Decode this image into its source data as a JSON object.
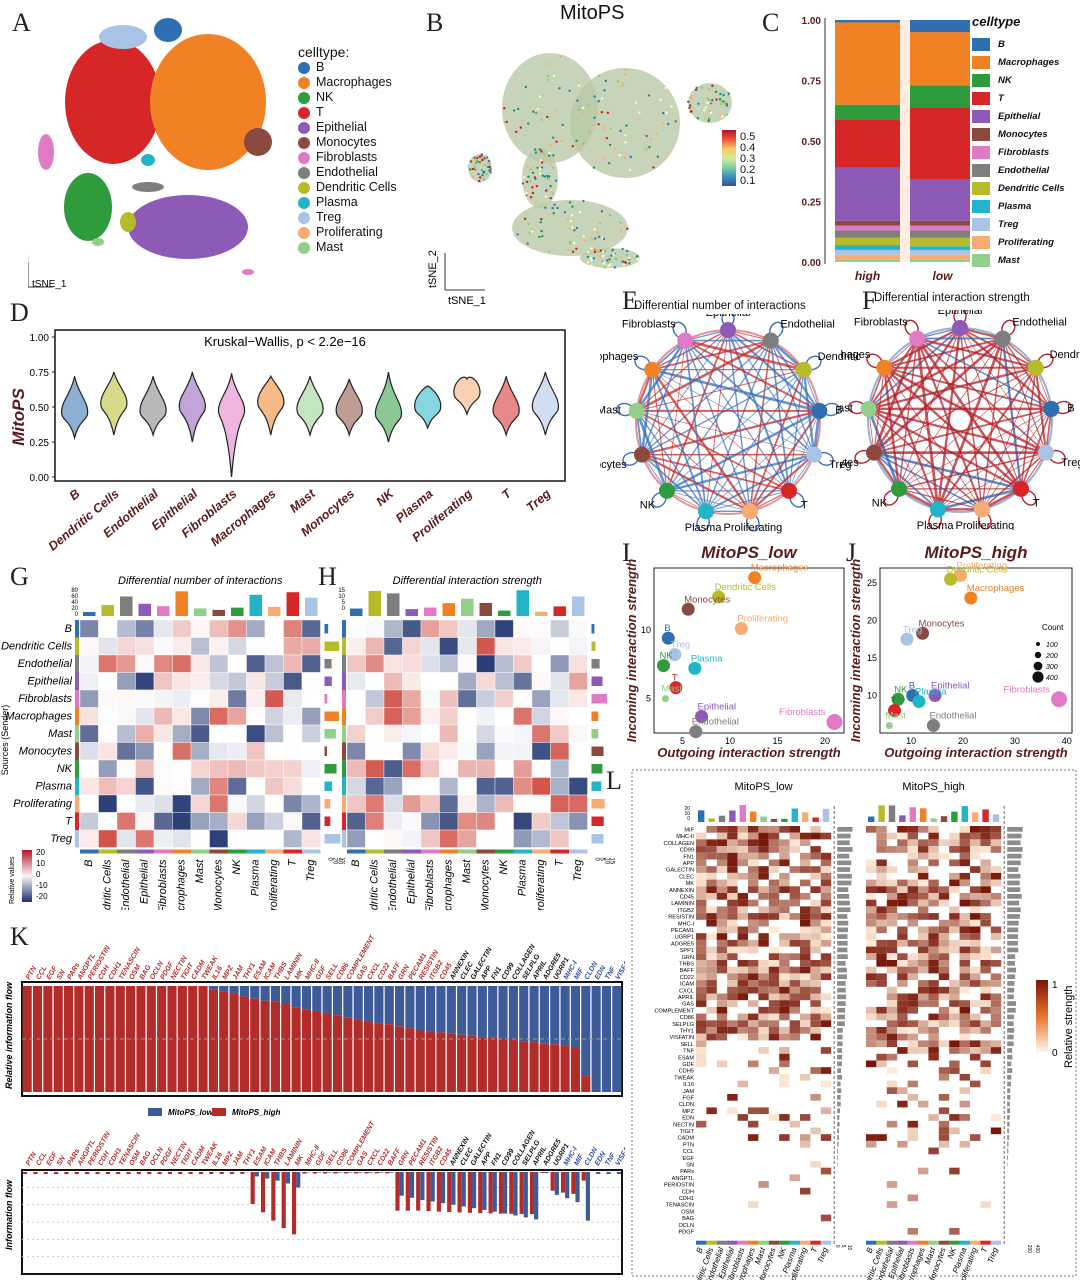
{
  "panel_letters": [
    "A",
    "B",
    "C",
    "D",
    "E",
    "F",
    "G",
    "H",
    "I",
    "J",
    "K",
    "L"
  ],
  "colors": {
    "B": "#2e6fb1",
    "Macrophages": "#f08124",
    "NK": "#2e9b3c",
    "T": "#d62628",
    "Epithelial": "#8e5ab8",
    "Monocytes": "#8b4a3f",
    "Fibroblasts": "#e07ac4",
    "Endothelial": "#7e7e7e",
    "Dendritic Cells": "#b7bb2a",
    "Plasma": "#21b5c7",
    "Treg": "#a9c3e6",
    "Proliferating": "#f7ac74",
    "Mast": "#92cf8b"
  },
  "panelA": {
    "legend_title": "celltype:",
    "legend": [
      "B",
      "Macrophages",
      "NK",
      "T",
      "Epithelial",
      "Monocytes",
      "Fibroblasts",
      "Endothelial",
      "Dendritic Cells",
      "Plasma",
      "Treg",
      "Proliferating",
      "Mast"
    ],
    "axis_x": "tSNE_1",
    "axis_y": "tSNE_2"
  },
  "panelB": {
    "title": "MitoPS",
    "colorbar_ticks": [
      "0.5",
      "0.4",
      "0.3",
      "0.2",
      "0.1"
    ],
    "axis_x": "tSNE_1",
    "axis_y": "tSNE_2"
  },
  "chart_data": [
    {
      "id": "C",
      "type": "bar",
      "stacked": true,
      "categories": [
        "high",
        "low"
      ],
      "legend_title": "celltype",
      "yticks": [
        "0.00",
        "0.25",
        "0.50",
        "0.75",
        "1.00"
      ],
      "ylim": [
        0,
        1
      ],
      "series": [
        {
          "name": "Mast",
          "values": [
            0.01,
            0.01
          ]
        },
        {
          "name": "Proliferating",
          "values": [
            0.02,
            0.02
          ]
        },
        {
          "name": "Treg",
          "values": [
            0.02,
            0.02
          ]
        },
        {
          "name": "Plasma",
          "values": [
            0.02,
            0.015
          ]
        },
        {
          "name": "Dendritic Cells",
          "values": [
            0.03,
            0.035
          ]
        },
        {
          "name": "Endothelial",
          "values": [
            0.03,
            0.03
          ]
        },
        {
          "name": "Fibroblasts",
          "values": [
            0.02,
            0.02
          ]
        },
        {
          "name": "Monocytes",
          "values": [
            0.02,
            0.02
          ]
        },
        {
          "name": "Epithelial",
          "values": [
            0.22,
            0.17
          ]
        },
        {
          "name": "T",
          "values": [
            0.2,
            0.3
          ]
        },
        {
          "name": "NK",
          "values": [
            0.06,
            0.09
          ]
        },
        {
          "name": "Macrophages",
          "values": [
            0.34,
            0.22
          ]
        },
        {
          "name": "B",
          "values": [
            0.01,
            0.05
          ]
        }
      ],
      "legend_order": [
        "B",
        "Macrophages",
        "NK",
        "T",
        "Epithelial",
        "Monocytes",
        "Fibroblasts",
        "Endothelial",
        "Dendritic Cells",
        "Plasma",
        "Treg",
        "Proliferating",
        "Mast"
      ]
    },
    {
      "id": "D",
      "type": "violin",
      "title": "Kruskal−Wallis, p < 2.2e−16",
      "ylabel": "MitoPS",
      "yticks": [
        "0.00",
        "0.25",
        "0.50",
        "0.75",
        "1.00"
      ],
      "ylim": [
        0,
        1
      ],
      "categories": [
        "B",
        "Dendritic Cells",
        "Endothelial",
        "Epithelial",
        "Fibroblasts",
        "Macrophages",
        "Mast",
        "Monocytes",
        "NK",
        "Plasma",
        "Proliferating",
        "T",
        "Treg"
      ],
      "medians": [
        0.46,
        0.52,
        0.47,
        0.5,
        0.47,
        0.53,
        0.48,
        0.47,
        0.45,
        0.5,
        0.6,
        0.47,
        0.5
      ],
      "mins": [
        0.28,
        0.3,
        0.3,
        0.25,
        0.0,
        0.3,
        0.3,
        0.3,
        0.25,
        0.35,
        0.45,
        0.3,
        0.3
      ],
      "maxs": [
        0.72,
        0.75,
        0.72,
        0.75,
        0.74,
        0.72,
        0.72,
        0.7,
        0.75,
        0.65,
        0.7,
        0.72,
        0.75
      ]
    },
    {
      "id": "E",
      "type": "network",
      "title": "Differential number of interactions",
      "nodes": [
        "Epithelial",
        "Endothelial",
        "Dendritic Cells",
        "B",
        "Treg",
        "T",
        "Proliferating",
        "Plasma",
        "NK",
        "Monocytes",
        "Mast",
        "Macrophages",
        "Fibroblasts"
      ]
    },
    {
      "id": "F",
      "type": "network",
      "title": "Differential interaction strength",
      "nodes": [
        "Epithelial",
        "Endothelial",
        "Dendritic Cells",
        "B",
        "Treg",
        "T",
        "Proliferating",
        "Plasma",
        "NK",
        "Monocytes",
        "Mast",
        "Macrophages",
        "Fibroblasts"
      ]
    },
    {
      "id": "G",
      "type": "heatmap",
      "title": "Differential number of interactions",
      "rows": [
        "B",
        "Dendritic Cells",
        "Endothelial",
        "Epithelial",
        "Fibroblasts",
        "Macrophages",
        "Mast",
        "Monocytes",
        "NK",
        "Plasma",
        "Proliferating",
        "T",
        "Treg"
      ],
      "cols": [
        "B",
        "Dendritic Cells",
        "Endothelial",
        "Epithelial",
        "Fibroblasts",
        "Macrophages",
        "Mast",
        "Monocytes",
        "NK",
        "Plasma",
        "Proliferating",
        "T",
        "Treg"
      ],
      "top_ticks": [
        "80",
        "60",
        "40",
        "20",
        "0"
      ],
      "right_ticks": [
        "0",
        "20",
        "40",
        "60"
      ],
      "ylabel": "Sources (Sender)",
      "colorbar_title": "Relative values",
      "colorbar_ticks": [
        "20",
        "10",
        "0",
        "-10",
        "-20"
      ]
    },
    {
      "id": "H",
      "type": "heatmap",
      "title": "Differential interaction strength",
      "cols": [
        "B",
        "Dendritic Cells",
        "Endothelial",
        "Epithelial",
        "Fibroblasts",
        "Macrophages",
        "Mast",
        "Monocytes",
        "NK",
        "Plasma",
        "Proliferating",
        "T",
        "Treg"
      ],
      "top_ticks": [
        "15",
        "10",
        "5",
        "0"
      ],
      "right_ticks": [
        "0",
        "5",
        "10",
        "15"
      ]
    },
    {
      "id": "I",
      "type": "scatter",
      "title": "MitoPS_low",
      "xlabel": "Outgoing interaction strength",
      "ylabel": "Incoming interaction strength",
      "xticks": [
        "5",
        "10",
        "15",
        "20"
      ],
      "yticks": [
        "5",
        "10"
      ],
      "xlim": [
        2,
        22
      ],
      "ylim": [
        2.5,
        14.5
      ],
      "points": [
        {
          "name": "Macrophages",
          "x": 12.6,
          "y": 13.8
        },
        {
          "name": "Dendritic Cells",
          "x": 8.8,
          "y": 12.4
        },
        {
          "name": "Monocytes",
          "x": 5.6,
          "y": 11.5
        },
        {
          "name": "B",
          "x": 3.5,
          "y": 9.4
        },
        {
          "name": "Proliferating",
          "x": 11.2,
          "y": 10.1
        },
        {
          "name": "Treg",
          "x": 4.2,
          "y": 8.2
        },
        {
          "name": "NK",
          "x": 3.0,
          "y": 7.4
        },
        {
          "name": "Plasma",
          "x": 6.3,
          "y": 7.2
        },
        {
          "name": "T",
          "x": 4.3,
          "y": 5.8
        },
        {
          "name": "Mast",
          "x": 3.2,
          "y": 5.0
        },
        {
          "name": "Epithelial",
          "x": 7.0,
          "y": 3.7
        },
        {
          "name": "Endothelial",
          "x": 6.4,
          "y": 2.6
        },
        {
          "name": "Fibroblasts",
          "x": 21.0,
          "y": 3.3
        }
      ]
    },
    {
      "id": "J",
      "type": "scatter",
      "title": "MitoPS_high",
      "xlabel": "Outgoing interaction strength",
      "ylabel": "Incoming interaction strength",
      "xticks": [
        "10",
        "20",
        "30",
        "40"
      ],
      "yticks": [
        "10",
        "15",
        "20",
        "25"
      ],
      "xlim": [
        4,
        41
      ],
      "ylim": [
        5,
        27
      ],
      "size_legend_title": "Count",
      "size_legend": [
        "100",
        "200",
        "300",
        "400"
      ],
      "points": [
        {
          "name": "Proliferating",
          "x": 19.5,
          "y": 26.0
        },
        {
          "name": "Dendritic Cells",
          "x": 17.6,
          "y": 25.5
        },
        {
          "name": "Macrophages",
          "x": 21.5,
          "y": 23.0
        },
        {
          "name": "Monocytes",
          "x": 12.2,
          "y": 18.3
        },
        {
          "name": "Treg",
          "x": 9.2,
          "y": 17.5
        },
        {
          "name": "B",
          "x": 10.3,
          "y": 10.0
        },
        {
          "name": "Epithelial",
          "x": 14.6,
          "y": 10.0
        },
        {
          "name": "NK",
          "x": 7.5,
          "y": 9.5
        },
        {
          "name": "Plasma",
          "x": 11.5,
          "y": 9.2
        },
        {
          "name": "T",
          "x": 6.8,
          "y": 8.0
        },
        {
          "name": "Mast",
          "x": 5.8,
          "y": 6.0
        },
        {
          "name": "Endothelial",
          "x": 14.3,
          "y": 6.0
        },
        {
          "name": "Fibroblasts",
          "x": 38.5,
          "y": 9.5
        }
      ]
    },
    {
      "id": "K",
      "type": "bar",
      "stacked": true,
      "ylabel_top": "Relative information flow",
      "ylabel_bottom": "Information flow",
      "legend": [
        "MitoPS_low",
        "MitoPS_high"
      ],
      "pathways": [
        "PTN",
        "CCL",
        "EGF",
        "SN",
        "PARs",
        "ANGPTL",
        "PERIOSTIN",
        "CDH",
        "CDH1",
        "TENASCIN",
        "OSM",
        "BAG",
        "OCLN",
        "PDGF",
        "NECTIN",
        "TIGIT",
        "CADM",
        "TWEAK",
        "IL16",
        "MPZ",
        "JAM",
        "THY1",
        "ESAM",
        "ICAM",
        "THBS",
        "LAMININ",
        "MK",
        "MHC-II",
        "GDF",
        "SELL",
        "CD86",
        "COMPLEMENT",
        "GAS",
        "CXCL",
        "CD22",
        "BAFF",
        "GRN",
        "PECAM1",
        "RESISTIN",
        "ITGB2",
        "CD45",
        "ANNEXIN",
        "CLEC",
        "GALECTIN",
        "APP",
        "FN1",
        "CD99",
        "COLLAGEN",
        "SELPLG",
        "APRIL",
        "ADGRE5",
        "UGRP1",
        "MHC-I",
        "MIF",
        "CLDN",
        "EDN",
        "TNF",
        "VISFATIN"
      ],
      "high_fraction": [
        1,
        1,
        1,
        1,
        1,
        1,
        1,
        1,
        1,
        1,
        1,
        1,
        1,
        1,
        1,
        1,
        1,
        1,
        0.97,
        0.95,
        0.93,
        0.9,
        0.88,
        0.86,
        0.85,
        0.83,
        0.8,
        0.78,
        0.76,
        0.74,
        0.72,
        0.7,
        0.68,
        0.66,
        0.65,
        0.64,
        0.62,
        0.6,
        0.58,
        0.57,
        0.56,
        0.55,
        0.54,
        0.53,
        0.52,
        0.51,
        0.5,
        0.49,
        0.48,
        0.47,
        0.46,
        0.45,
        0.44,
        0.42,
        0.15,
        0,
        0,
        0
      ]
    },
    {
      "id": "L",
      "type": "heatmap",
      "titles": [
        "MitoPS_low",
        "MitoPS_high"
      ],
      "colorbar_title": "Relative strength",
      "colorbar_ticks": [
        "1",
        "0"
      ],
      "rows": [
        "MIF",
        "MHC-II",
        "COLLAGEN",
        "CD99",
        "FN1",
        "APP",
        "GALECTIN",
        "CLEC",
        "MK",
        "ANNEXIN",
        "CD45",
        "LAMININ",
        "ITGB2",
        "RESISTIN",
        "MHC-I",
        "PECAM1",
        "UGRP1",
        "ADGRE5",
        "SPP1",
        "GRN",
        "THBS",
        "BAFF",
        "CD22",
        "ICAM",
        "CXCL",
        "APRIL",
        "GAS",
        "COMPLEMENT",
        "CD86",
        "SELPLG",
        "THY1",
        "VISFATIN",
        "SELL",
        "TNF",
        "ESAM",
        "GDF",
        "CDH5",
        "TWEAK",
        "IL16",
        "JAM",
        "FGF",
        "CLDN",
        "MPZ",
        "EDN",
        "NECTIN",
        "TIGIT",
        "CADM",
        "PTN",
        "CCL",
        "EGF",
        "SN",
        "PARs",
        "ANGPTL",
        "PERIOSTIN",
        "CDH",
        "CDH1",
        "TENASCIN",
        "OSM",
        "BAG",
        "OCLN",
        "PDGF"
      ],
      "cols": [
        "B",
        "Dendritic Cells",
        "Endothelial",
        "Epithelial",
        "Fibroblasts",
        "Macrophages",
        "Mast",
        "Monocytes",
        "NK",
        "Plasma",
        "Proliferating",
        "T",
        "Treg"
      ],
      "top_ticks_low": [
        "20",
        "10",
        "0"
      ],
      "bottom_ticks_low": [
        "0",
        "5",
        "10"
      ],
      "bottom_ticks_high": [
        "200",
        "400"
      ]
    }
  ]
}
